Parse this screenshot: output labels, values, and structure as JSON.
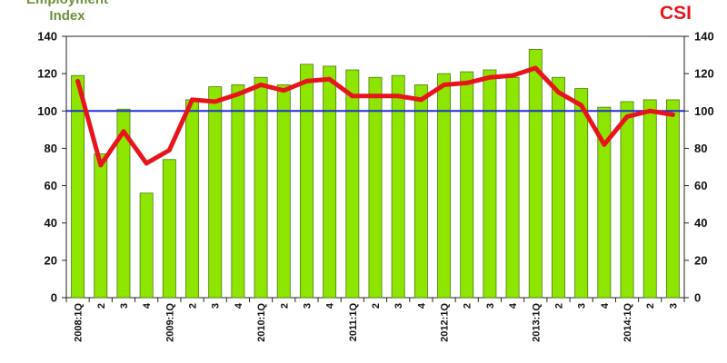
{
  "chart_data": {
    "type": "bar+line",
    "left_axis_title": [
      "Employment",
      "Index"
    ],
    "right_axis_title": "CSI",
    "categories": [
      "2008:1Q",
      "2",
      "3",
      "4",
      "2009:1Q",
      "2",
      "3",
      "4",
      "2010:1Q",
      "2",
      "3",
      "4",
      "2011:1Q",
      "2",
      "3",
      "4",
      "2012:1Q",
      "2",
      "3",
      "4",
      "2013:1Q",
      "2",
      "3",
      "4",
      "2014:1Q",
      "2",
      "3"
    ],
    "series": [
      {
        "name": "Employment Index",
        "kind": "bar",
        "color": "#8ee600",
        "values": [
          119,
          77,
          101,
          56,
          74,
          106,
          113,
          114,
          118,
          114,
          125,
          124,
          122,
          118,
          119,
          114,
          120,
          121,
          122,
          118,
          133,
          118,
          112,
          102,
          105,
          106,
          106
        ]
      },
      {
        "name": "CSI",
        "kind": "line",
        "color": "#e8141c",
        "values": [
          116,
          71,
          89,
          72,
          79,
          106,
          105,
          109,
          114,
          111,
          116,
          117,
          108,
          108,
          108,
          106,
          114,
          115,
          118,
          119,
          123,
          110,
          103,
          82,
          97,
          100,
          98
        ]
      }
    ],
    "reference_line": {
      "value": 100,
      "color": "#1f2fd8"
    },
    "ylim": [
      0,
      140
    ],
    "yticks": [
      0,
      20,
      40,
      60,
      80,
      100,
      120,
      140
    ],
    "grid": false,
    "legend": "none"
  }
}
